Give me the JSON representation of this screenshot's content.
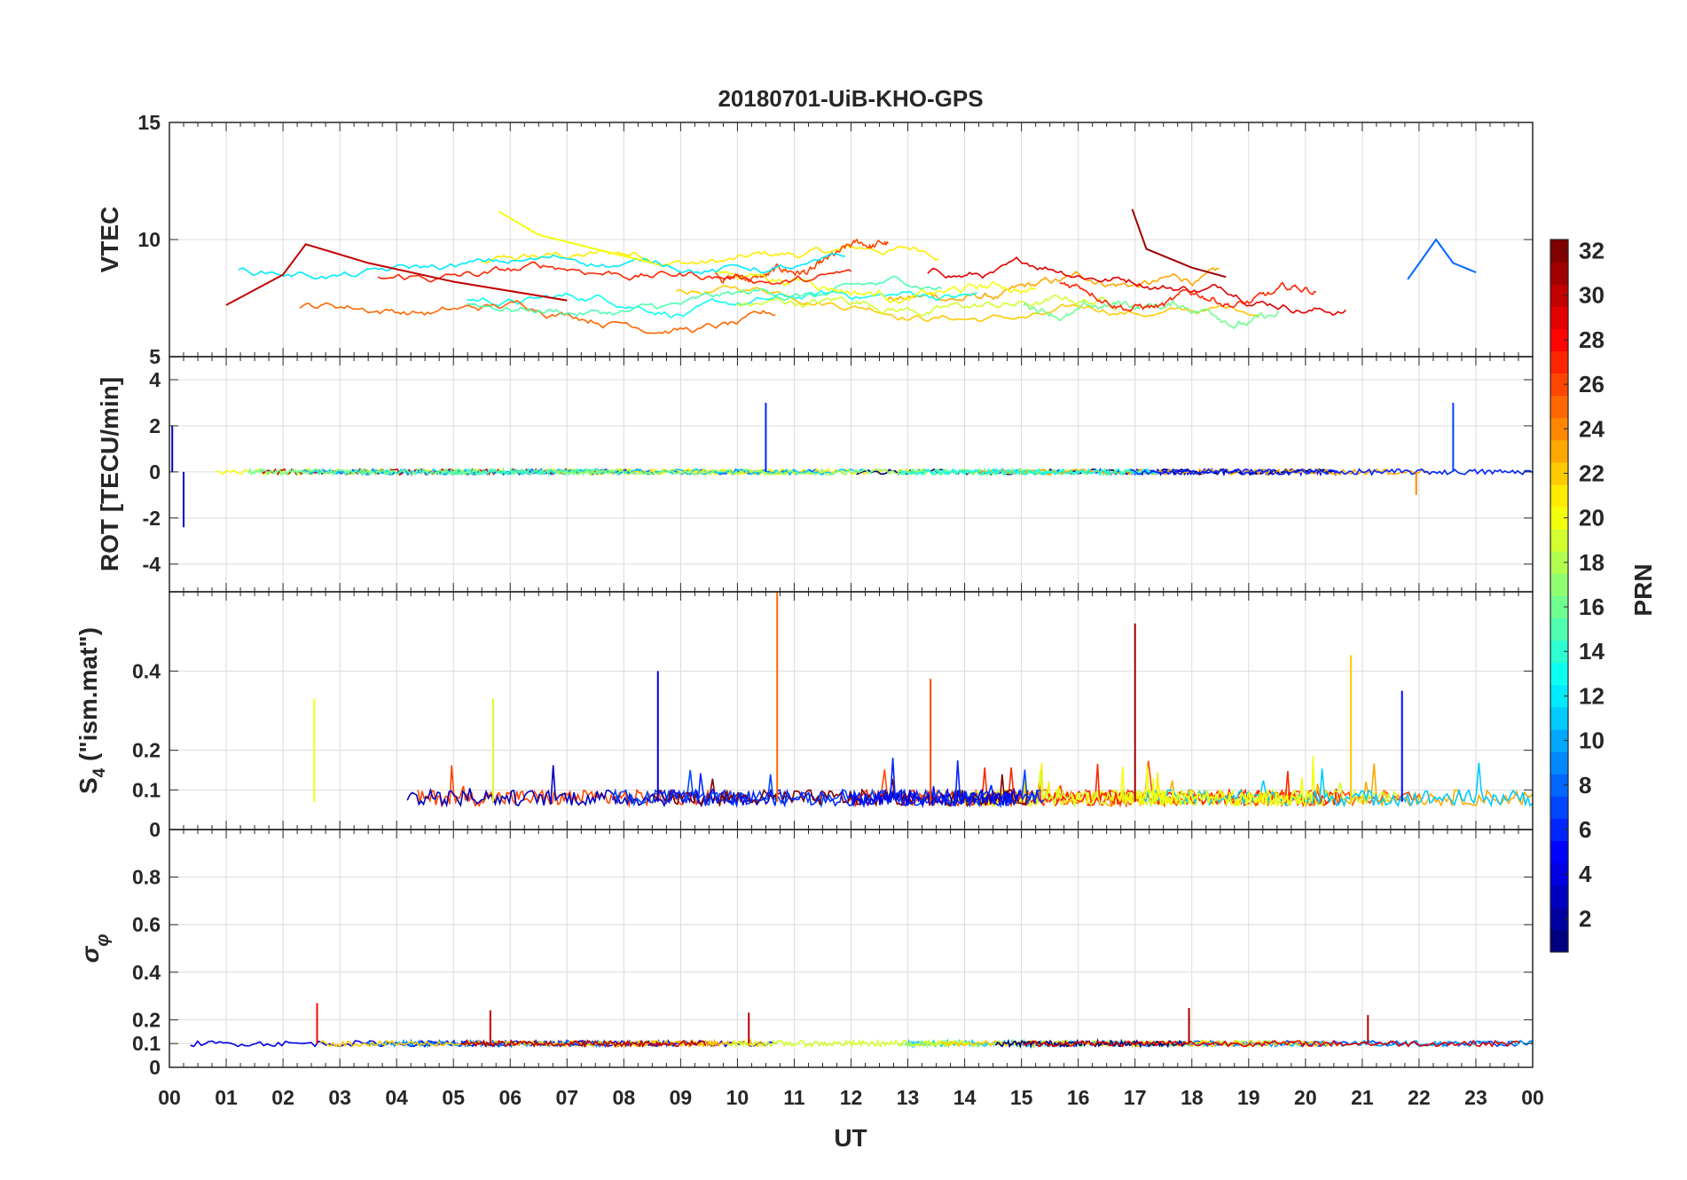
{
  "chart_data": {
    "title": "20180701-UiB-KHO-GPS",
    "type": "line",
    "x_axis": {
      "label": "UT",
      "range": [
        0,
        24
      ],
      "ticks": [
        0,
        1,
        2,
        3,
        4,
        5,
        6,
        7,
        8,
        9,
        10,
        11,
        12,
        13,
        14,
        15,
        16,
        17,
        18,
        19,
        20,
        21,
        22,
        23,
        24
      ],
      "tick_labels": [
        "00",
        "01",
        "02",
        "03",
        "04",
        "05",
        "06",
        "07",
        "08",
        "09",
        "10",
        "11",
        "12",
        "13",
        "14",
        "15",
        "16",
        "17",
        "18",
        "19",
        "20",
        "21",
        "22",
        "23",
        "00"
      ]
    },
    "grid": true,
    "colorbar": {
      "label": "PRN",
      "colormap": "jet",
      "range": [
        1,
        32
      ],
      "ticks": [
        2,
        4,
        6,
        8,
        10,
        12,
        14,
        16,
        18,
        20,
        22,
        24,
        26,
        28,
        30,
        32
      ],
      "tick_labels": [
        "2",
        "4",
        "6",
        "8",
        "10",
        "12",
        "14",
        "16",
        "18",
        "20",
        "22",
        "24",
        "26",
        "28",
        "30",
        "32"
      ]
    },
    "panels": [
      {
        "id": "vtec",
        "ylabel": "VTEC",
        "ylim": [
          5,
          15
        ],
        "yticks": [
          5,
          10,
          15
        ],
        "ytick_labels": [
          "5",
          "10",
          "15"
        ],
        "baseline": 8.0,
        "noise": 0.15,
        "series_examples": [
          {
            "prn": 30,
            "x": [
              1.0,
              2.0,
              2.4,
              3.5,
              5.0,
              7.0
            ],
            "y": [
              7.2,
              8.5,
              9.8,
              9.0,
              8.2,
              7.4
            ]
          },
          {
            "prn": 20,
            "x": [
              5.8,
              6.5,
              7.5,
              8.5
            ],
            "y": [
              11.2,
              10.2,
              9.6,
              9.0
            ]
          },
          {
            "prn": 31,
            "x": [
              16.95,
              17.2,
              18.0,
              18.6
            ],
            "y": [
              11.3,
              9.6,
              8.8,
              8.4
            ]
          },
          {
            "prn": 8,
            "x": [
              21.8,
              22.3,
              22.6,
              23.0
            ],
            "y": [
              8.3,
              10.0,
              9.0,
              8.6
            ]
          }
        ]
      },
      {
        "id": "rot",
        "ylabel": "ROT [TECU/min]",
        "ylim": [
          -5.2,
          5
        ],
        "yticks": [
          -4,
          -2,
          0,
          2,
          4
        ],
        "ytick_labels": [
          "-4",
          "-2",
          "0",
          "2",
          "4"
        ],
        "baseline": 0.0,
        "noise": 0.12,
        "spikes": [
          {
            "x": 0.05,
            "y": 2.0,
            "prn": 3
          },
          {
            "x": 0.25,
            "y": -2.4,
            "prn": 3
          },
          {
            "x": 10.5,
            "y": 3.0,
            "prn": 6
          },
          {
            "x": 22.6,
            "y": 3.0,
            "prn": 7
          },
          {
            "x": 21.95,
            "y": -1.0,
            "prn": 24
          }
        ]
      },
      {
        "id": "s4",
        "ylabel": "S4 (\"ism.mat\")",
        "ylim": [
          0,
          0.6
        ],
        "yticks": [
          0,
          0.1,
          0.2,
          0.4
        ],
        "ytick_labels": [
          "0",
          "0.1",
          "0.2",
          "0.4"
        ],
        "baseline": 0.07,
        "noise": 0.02,
        "spikes": [
          {
            "x": 2.55,
            "y": 0.33,
            "prn": 20
          },
          {
            "x": 5.7,
            "y": 0.33,
            "prn": 19
          },
          {
            "x": 8.6,
            "y": 0.4,
            "prn": 4
          },
          {
            "x": 10.7,
            "y": 0.6,
            "prn": 25
          },
          {
            "x": 13.4,
            "y": 0.38,
            "prn": 26
          },
          {
            "x": 17.0,
            "y": 0.52,
            "prn": 31
          },
          {
            "x": 20.8,
            "y": 0.44,
            "prn": 22
          },
          {
            "x": 21.7,
            "y": 0.35,
            "prn": 5
          }
        ]
      },
      {
        "id": "sigma_phi",
        "ylabel": "σφ",
        "ylim": [
          0,
          1
        ],
        "yticks": [
          0,
          0.1,
          0.2,
          0.4,
          0.6,
          0.8
        ],
        "ytick_labels": [
          "0",
          "0.1",
          "0.2",
          "0.4",
          "0.6",
          "0.8"
        ],
        "baseline": 0.1,
        "noise": 0.012,
        "spikes": [
          {
            "x": 2.6,
            "y": 0.27,
            "prn": 28
          },
          {
            "x": 5.65,
            "y": 0.24,
            "prn": 30
          },
          {
            "x": 10.2,
            "y": 0.23,
            "prn": 30
          },
          {
            "x": 17.95,
            "y": 0.25,
            "prn": 31
          },
          {
            "x": 21.1,
            "y": 0.22,
            "prn": 30
          }
        ]
      }
    ]
  }
}
